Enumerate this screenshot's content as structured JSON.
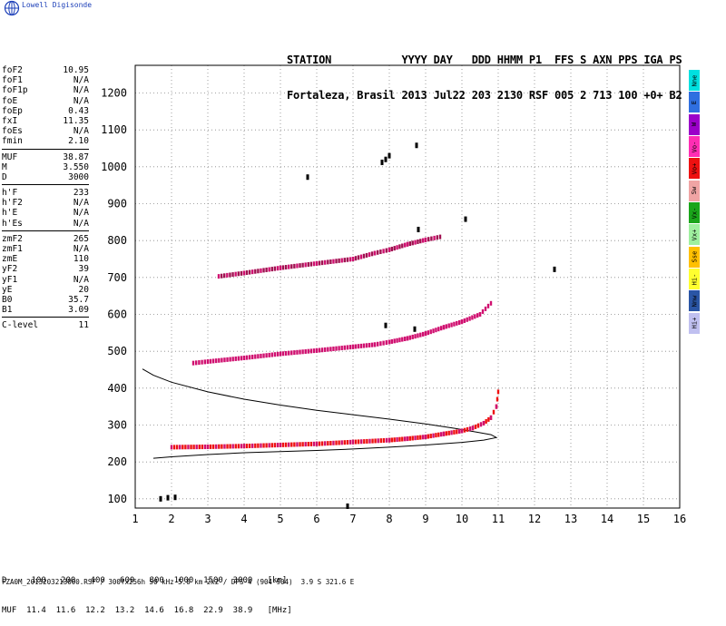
{
  "brand": "Lowell Digisonde",
  "header": {
    "line1": "STATION           YYYY DAY   DDD HHMM P1  FFS S AXN PPS IGA PS",
    "line2": "Fortaleza, Brasil 2013 Jul22 203 2130 RSF 005 2 713 100 +0+ B2"
  },
  "params": [
    {
      "label": "foF2",
      "value": "10.95"
    },
    {
      "label": "foF1",
      "value": "N/A"
    },
    {
      "label": "foF1p",
      "value": "N/A"
    },
    {
      "label": "foE",
      "value": "N/A"
    },
    {
      "label": "foEp",
      "value": "0.43"
    },
    {
      "label": "fxI",
      "value": "11.35"
    },
    {
      "label": "foEs",
      "value": "N/A"
    },
    {
      "label": "fmin",
      "value": "2.10"
    },
    {
      "label": "MUF",
      "value": "38.87"
    },
    {
      "label": "M",
      "value": "3.550"
    },
    {
      "label": "D",
      "value": "3000"
    },
    {
      "label": "h'F",
      "value": "233"
    },
    {
      "label": "h'F2",
      "value": "N/A"
    },
    {
      "label": "h'E",
      "value": "N/A"
    },
    {
      "label": "h'Es",
      "value": "N/A"
    },
    {
      "label": "zmF2",
      "value": "265"
    },
    {
      "label": "zmF1",
      "value": "N/A"
    },
    {
      "label": "zmE",
      "value": "110"
    },
    {
      "label": "yF2",
      "value": "39"
    },
    {
      "label": "yF1",
      "value": "N/A"
    },
    {
      "label": "yE",
      "value": "20"
    },
    {
      "label": "B0",
      "value": "35.7"
    },
    {
      "label": "B1",
      "value": "3.09"
    },
    {
      "label": "C-level",
      "value": "11"
    }
  ],
  "legend": [
    {
      "label": "Nne",
      "color": "#00e0e0"
    },
    {
      "label": "E",
      "color": "#2f6fe0"
    },
    {
      "label": "W",
      "color": "#9b00c9"
    },
    {
      "label": "Vo-",
      "color": "#ff2db4"
    },
    {
      "label": "Vo+",
      "color": "#ee1111"
    },
    {
      "label": "Sw",
      "color": "#f0a4a4"
    },
    {
      "label": "Vx-",
      "color": "#1aa51a"
    },
    {
      "label": "Vx+",
      "color": "#9ff09f"
    },
    {
      "label": "Sse",
      "color": "#ffc000"
    },
    {
      "label": "Hi-",
      "color": "#ffff30"
    },
    {
      "label": "Nnw",
      "color": "#2a55a5"
    },
    {
      "label": "Hi+",
      "color": "#c0c0f0"
    }
  ],
  "dtable": {
    "row1": "D     100   200   400   600   800  1000  1500  3000   [km]",
    "row2": "MUF  11.4  11.6  12.2  13.2  14.6  16.8  22.9  38.9   [MHz]"
  },
  "footer": "FZA0M_2013203213000.RSF / 300fx256h 50 kHz 5.0 km 2x2 / DPS-4 (904-904)  3.9 S 321.6 E",
  "chart_data": {
    "type": "scatter",
    "title": "",
    "xlabel": "",
    "ylabel": "",
    "xlim": [
      1,
      16
    ],
    "ylim": [
      75,
      1275
    ],
    "xticks": [
      1,
      2,
      3,
      4,
      5,
      6,
      7,
      8,
      9,
      10,
      11,
      12,
      13,
      14,
      15,
      16
    ],
    "yticks": [
      100,
      200,
      300,
      400,
      500,
      600,
      700,
      800,
      900,
      1000,
      1100,
      1200
    ],
    "grid": true,
    "traces": [
      {
        "name": "F2 trace",
        "color": "#ee1111",
        "points": [
          [
            2.0,
            240
          ],
          [
            3.0,
            241
          ],
          [
            4.0,
            243
          ],
          [
            5.0,
            246
          ],
          [
            6.0,
            249
          ],
          [
            7.0,
            254
          ],
          [
            8.0,
            259
          ],
          [
            8.5,
            263
          ],
          [
            9.0,
            268
          ],
          [
            9.5,
            276
          ],
          [
            10.0,
            284
          ],
          [
            10.3,
            292
          ],
          [
            10.6,
            305
          ],
          [
            10.8,
            320
          ],
          [
            10.95,
            350
          ],
          [
            11.0,
            390
          ]
        ]
      },
      {
        "name": "Second hop",
        "color": "#d01070",
        "points": [
          [
            2.6,
            468
          ],
          [
            3.0,
            472
          ],
          [
            4.0,
            482
          ],
          [
            5.0,
            493
          ],
          [
            6.0,
            502
          ],
          [
            7.0,
            512
          ],
          [
            7.6,
            518
          ],
          [
            8.0,
            525
          ],
          [
            8.5,
            535
          ],
          [
            9.0,
            548
          ],
          [
            9.5,
            565
          ],
          [
            10.0,
            580
          ],
          [
            10.5,
            600
          ],
          [
            10.8,
            630
          ]
        ]
      },
      {
        "name": "Third hop",
        "color": "#a01050",
        "points": [
          [
            3.3,
            703
          ],
          [
            4.0,
            712
          ],
          [
            5.0,
            726
          ],
          [
            6.0,
            738
          ],
          [
            7.0,
            750
          ],
          [
            7.6,
            766
          ],
          [
            8.0,
            775
          ],
          [
            8.5,
            790
          ],
          [
            9.0,
            802
          ],
          [
            9.4,
            810
          ]
        ]
      },
      {
        "name": "Scattered echoes",
        "color": "#000000",
        "points": [
          [
            7.8,
            1012
          ],
          [
            7.9,
            1020
          ],
          [
            8.0,
            1030
          ],
          [
            8.75,
            1058
          ],
          [
            5.75,
            972
          ],
          [
            10.1,
            858
          ],
          [
            8.8,
            830
          ],
          [
            7.9,
            570
          ],
          [
            8.7,
            560
          ],
          [
            12.55,
            722
          ],
          [
            1.7,
            100
          ],
          [
            1.9,
            103
          ],
          [
            2.1,
            104
          ],
          [
            6.85,
            80
          ]
        ]
      }
    ],
    "profile": {
      "name": "Electron density profile",
      "color": "#000000",
      "points": [
        [
          1.2,
          452
        ],
        [
          1.5,
          435
        ],
        [
          2.0,
          416
        ],
        [
          3.0,
          390
        ],
        [
          4.0,
          370
        ],
        [
          5.0,
          354
        ],
        [
          6.0,
          340
        ],
        [
          7.0,
          328
        ],
        [
          8.0,
          316
        ],
        [
          9.0,
          303
        ],
        [
          9.8,
          291
        ],
        [
          10.4,
          281
        ],
        [
          10.8,
          274
        ],
        [
          10.95,
          266
        ],
        [
          10.6,
          259
        ],
        [
          10.0,
          253
        ],
        [
          9.0,
          246
        ],
        [
          8.0,
          240
        ],
        [
          7.0,
          235
        ],
        [
          6.0,
          231
        ],
        [
          5.0,
          228
        ],
        [
          4.0,
          225
        ],
        [
          3.0,
          220
        ],
        [
          2.0,
          214
        ],
        [
          1.5,
          210
        ]
      ]
    }
  }
}
